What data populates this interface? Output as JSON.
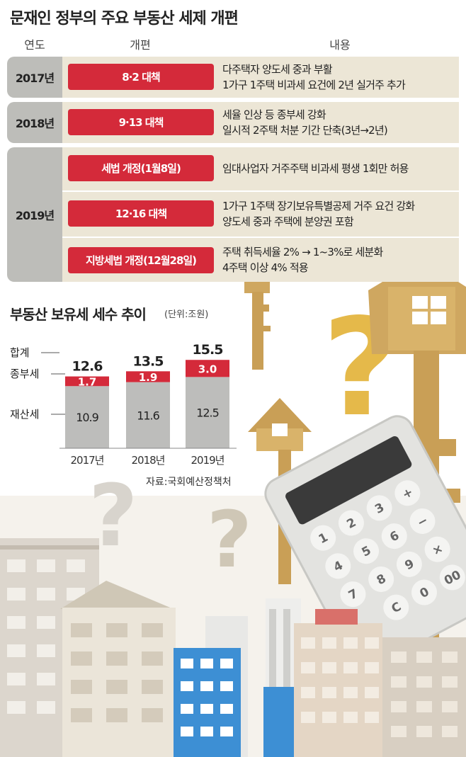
{
  "title": "문재인 정부의 주요 부동산 세제 개편",
  "table": {
    "headers": [
      "연도",
      "개편",
      "내용"
    ],
    "rows": [
      {
        "year": "2017년",
        "reform": "8·2 대책",
        "content": [
          "다주택자 양도세 중과 부활",
          "1가구 1주택 비과세 요건에 2년 실거주 추가"
        ]
      },
      {
        "year": "2018년",
        "reform": "9·13 대책",
        "content": [
          "세율 인상 등 종부세 강화",
          "일시적 2주택 처분 기간 단축(3년→2년)"
        ]
      },
      {
        "year": "2019년",
        "reform": "세법 개정(1월8일)",
        "content": [
          "임대사업자 거주주택 비과세 평생 1회만 허용"
        ]
      },
      {
        "year": "",
        "reform": "12·16 대책",
        "content": [
          "1가구 1주택 장기보유특별공제 거주 요건 강화",
          "양도세 중과 주택에 분양권 포함"
        ]
      },
      {
        "year": "",
        "reform": "지방세법 개정(12월28일)",
        "content": [
          "주택 취득세율 2% → 1~3%로 세분화",
          "4주택 이상 4% 적용"
        ]
      }
    ]
  },
  "chart_data": {
    "type": "bar",
    "stacked": true,
    "title": "부동산 보유세 세수 추이",
    "unit": "(단위:조원)",
    "categories": [
      "2017년",
      "2018년",
      "2019년"
    ],
    "series": [
      {
        "name": "재산세",
        "values": [
          10.9,
          11.6,
          12.5
        ],
        "color": "#bdbdbb"
      },
      {
        "name": "종부세",
        "values": [
          1.7,
          1.9,
          3.0
        ],
        "color": "#d42a3a"
      }
    ],
    "totals": [
      12.6,
      13.5,
      15.5
    ],
    "totals_label": "합계",
    "source": "자료:국회예산정책처"
  },
  "colors": {
    "accent_red": "#d42a3a",
    "row_beige": "#ece6d6",
    "year_gray": "#bdbdb9",
    "key_gold": "#d9b36a"
  },
  "illustration": {
    "calculator_keys": [
      "+",
      "3",
      "2",
      "1",
      "−",
      "6",
      "5",
      "4",
      "×",
      "9",
      "8",
      "7",
      "00",
      "0",
      "C"
    ]
  }
}
